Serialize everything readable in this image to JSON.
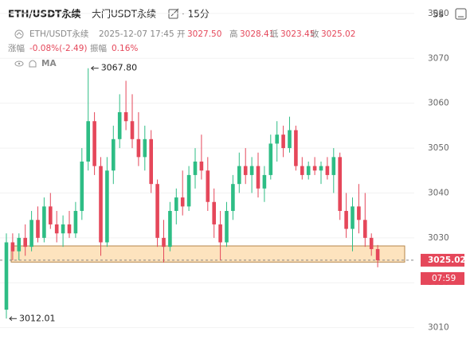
{
  "header": {
    "symbol": "ETH/USDT永续",
    "account": "大门USDT永续",
    "interval": "· 15分",
    "refresh": "5s"
  },
  "info": {
    "symbol": "ETH/USDT永续",
    "time": "2025-12-07 17:45",
    "fields": [
      {
        "label": "开",
        "value": "3027.50"
      },
      {
        "label": "高",
        "value": "3028.41"
      },
      {
        "label": "低",
        "value": "3023.45"
      },
      {
        "label": "收",
        "value": "3025.02"
      }
    ],
    "change_label": "涨幅",
    "change": "-0.08%(-2.49)",
    "amplitude_label": "振幅",
    "amplitude": "0.16%"
  },
  "indicator": "MA",
  "chart_data": {
    "type": "candlestick",
    "open": [
      3014,
      3029,
      3027,
      3030,
      3028,
      3034,
      3030,
      3037,
      3033,
      3031,
      3033,
      3031,
      3036,
      3047,
      3056,
      3046,
      3029,
      3045,
      3052,
      3058,
      3056,
      3052,
      3048,
      3052,
      3042,
      3030,
      3028,
      3036,
      3039,
      3037,
      3044,
      3047,
      3045,
      3038,
      3033,
      3029,
      3036,
      3042,
      3046,
      3044,
      3046,
      3041,
      3044,
      3051,
      3053,
      3050,
      3054,
      3046,
      3044,
      3046,
      3045,
      3046,
      3044,
      3048,
      3036,
      3032,
      3037,
      3034,
      3030,
      3027.5
    ],
    "high": [
      3031,
      3031,
      3031,
      3033,
      3036,
      3037,
      3039,
      3040,
      3036,
      3035,
      3036,
      3038,
      3050,
      3067.8,
      3058,
      3048,
      3048,
      3055,
      3062,
      3065,
      3062,
      3058,
      3055,
      3054,
      3043,
      3034,
      3038,
      3041,
      3045,
      3046,
      3050,
      3053,
      3048,
      3041,
      3036,
      3038,
      3044,
      3049,
      3050,
      3048,
      3049,
      3046,
      3053,
      3056,
      3055,
      3057,
      3055,
      3048,
      3047,
      3048,
      3047,
      3048,
      3050,
      3049,
      3040,
      3039,
      3042,
      3040,
      3031,
      3028.41
    ],
    "low": [
      3012.01,
      3025,
      3025,
      3026,
      3027,
      3029,
      3029,
      3032,
      3029,
      3028,
      3030,
      3030,
      3034,
      3045,
      3044,
      3026,
      3028,
      3042,
      3050,
      3054,
      3050,
      3046,
      3045,
      3040,
      3028,
      3024.5,
      3027,
      3033,
      3035,
      3036,
      3041,
      3043,
      3036,
      3030,
      3025,
      3028,
      3034,
      3040,
      3042,
      3040,
      3039,
      3038,
      3043,
      3047,
      3048,
      3049,
      3045,
      3043,
      3043,
      3044,
      3042,
      3043,
      3040,
      3034,
      3030,
      3027,
      3031,
      3028,
      3026,
      3023.45
    ],
    "close": [
      3029,
      3027,
      3030,
      3028,
      3034,
      3030,
      3037,
      3033,
      3031,
      3033,
      3031,
      3036,
      3047,
      3056,
      3046,
      3029,
      3045,
      3052,
      3058,
      3056,
      3052,
      3048,
      3052,
      3042,
      3030,
      3028,
      3036,
      3039,
      3037,
      3044,
      3047,
      3045,
      3038,
      3033,
      3029,
      3036,
      3042,
      3046,
      3044,
      3046,
      3041,
      3044,
      3051,
      3053,
      3050,
      3054,
      3046,
      3044,
      3046,
      3045,
      3046,
      3044,
      3048,
      3036,
      3032,
      3037,
      3034,
      3030,
      3027.5,
      3025.02
    ],
    "up_color": "#2ebd85",
    "down_color": "#e5475a",
    "ylim": [
      3005.5,
      3083
    ],
    "yticks": [
      3010,
      3020,
      3030,
      3040,
      3050,
      3060,
      3070,
      3080
    ],
    "grid": true,
    "highlight_band": [
      3024.6,
      3028.2
    ],
    "annotations": [
      {
        "label": "3067.80",
        "value": 3067.8
      },
      {
        "label": "3012.01",
        "value": 3012.01
      }
    ],
    "last_price": {
      "label": "3025.02",
      "value": 3025.02
    },
    "countdown": "07:59"
  }
}
